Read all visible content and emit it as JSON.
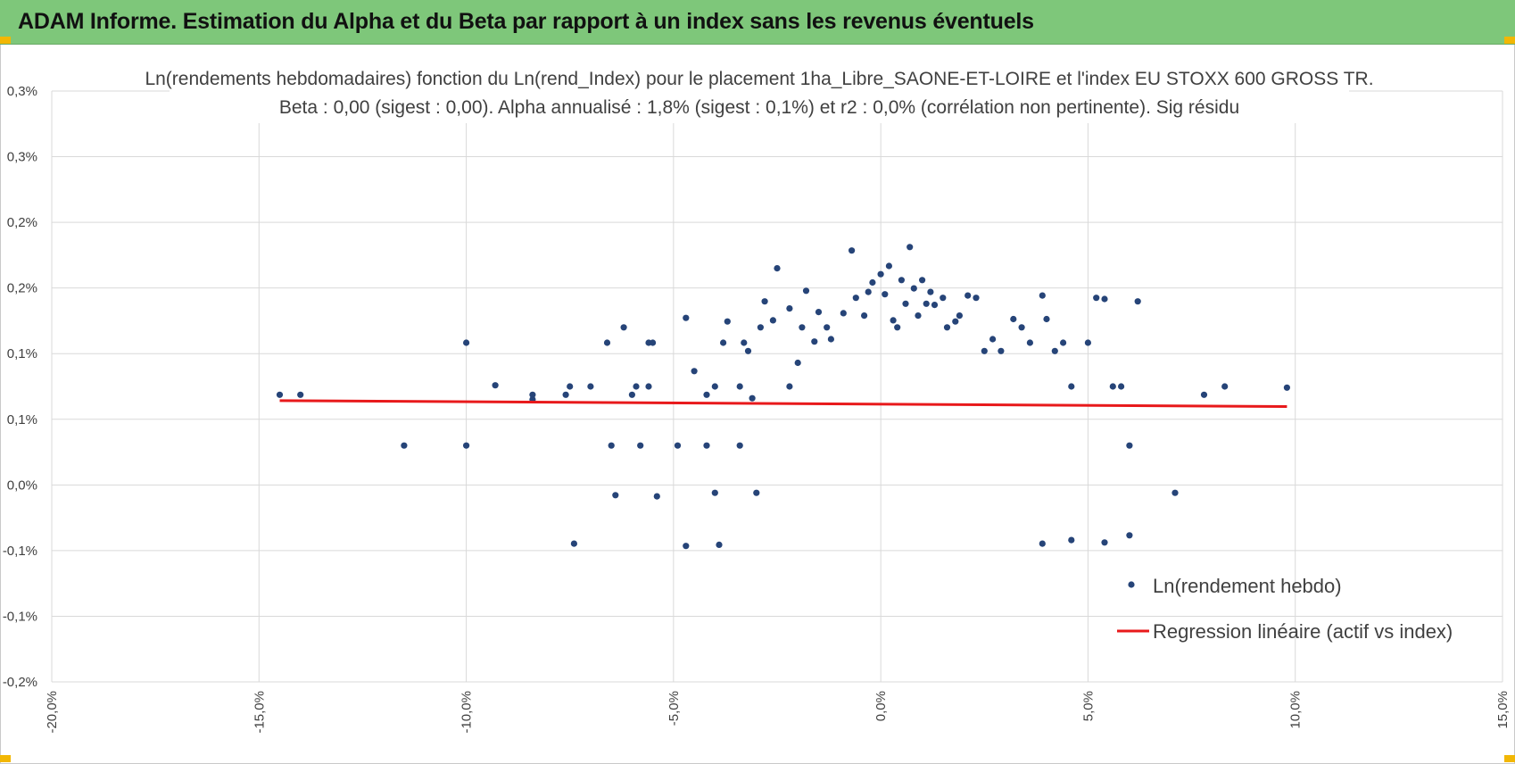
{
  "banner": {
    "title": "ADAM Informe. Estimation du Alpha et du Beta par rapport à un index sans les revenus éventuels",
    "color": "#7ec77a",
    "accent": "#f2b705"
  },
  "chart_data": {
    "type": "scatter",
    "title": "Ln(rendements hebdomadaires) fonction du Ln(rend_Index) pour le placement 1ha_Libre_SAONE-ET-LOIRE et l'index EU STOXX 600 GROSS TR.",
    "subtitle": "Beta : 0,00 (sigest : 0,00). Alpha annualisé : 1,8% (sigest : 0,1%) et r2 : 0,0% (corrélation non pertinente). Sig résidu",
    "xlabel": "",
    "ylabel": "",
    "xlim": [
      -20,
      15
    ],
    "ylim": [
      -0.2,
      0.3
    ],
    "grid": true,
    "legend_position": "bottom-right",
    "x_ticks": [
      "-20,0%",
      "-15,0%",
      "-10,0%",
      "-5,0%",
      "0,0%",
      "5,0%",
      "10,0%",
      "15,0%"
    ],
    "y_ticks": [
      "0,3%",
      "0,3%",
      "0,2%",
      "0,2%",
      "0,1%",
      "0,1%",
      "0,0%",
      "-0,1%",
      "-0,1%",
      "-0,2%"
    ],
    "series": [
      {
        "name": "Ln(rendement hebdo)",
        "color": "#264478",
        "points": [
          [
            -14.5,
            0.043
          ],
          [
            -14.0,
            0.043
          ],
          [
            -11.5,
            0.0
          ],
          [
            -10.0,
            0.0
          ],
          [
            -10.0,
            0.087
          ],
          [
            -9.3,
            0.051
          ],
          [
            -8.4,
            0.043
          ],
          [
            -8.4,
            0.039
          ],
          [
            -7.6,
            0.043
          ],
          [
            -7.5,
            0.05
          ],
          [
            -7.4,
            -0.083
          ],
          [
            -7.0,
            0.05
          ],
          [
            -6.6,
            0.087
          ],
          [
            -6.5,
            0.0
          ],
          [
            -6.4,
            -0.042
          ],
          [
            -6.2,
            0.1
          ],
          [
            -6.0,
            0.043
          ],
          [
            -5.9,
            0.05
          ],
          [
            -5.8,
            0.0
          ],
          [
            -5.6,
            0.087
          ],
          [
            -5.5,
            0.087
          ],
          [
            -5.4,
            -0.043
          ],
          [
            -5.6,
            0.05
          ],
          [
            -4.9,
            0.0
          ],
          [
            -4.7,
            0.108
          ],
          [
            -4.7,
            -0.085
          ],
          [
            -4.5,
            0.063
          ],
          [
            -4.2,
            0.043
          ],
          [
            -4.2,
            0.0
          ],
          [
            -4.0,
            -0.04
          ],
          [
            -4.0,
            0.05
          ],
          [
            -3.9,
            -0.084
          ],
          [
            -3.8,
            0.087
          ],
          [
            -3.7,
            0.105
          ],
          [
            -3.4,
            0.05
          ],
          [
            -3.4,
            0.0
          ],
          [
            -3.3,
            0.087
          ],
          [
            -3.2,
            0.08
          ],
          [
            -3.1,
            0.04
          ],
          [
            -3.0,
            -0.04
          ],
          [
            -2.9,
            0.1
          ],
          [
            -2.8,
            0.122
          ],
          [
            -2.6,
            0.106
          ],
          [
            -2.5,
            0.15
          ],
          [
            -2.2,
            0.116
          ],
          [
            -2.2,
            0.05
          ],
          [
            -2.0,
            0.07
          ],
          [
            -1.9,
            0.1
          ],
          [
            -1.8,
            0.131
          ],
          [
            -1.6,
            0.088
          ],
          [
            -1.5,
            0.113
          ],
          [
            -1.3,
            0.1
          ],
          [
            -1.2,
            0.09
          ],
          [
            -0.9,
            0.112
          ],
          [
            -0.7,
            0.165
          ],
          [
            -0.6,
            0.125
          ],
          [
            -0.4,
            0.11
          ],
          [
            -0.3,
            0.13
          ],
          [
            -0.2,
            0.138
          ],
          [
            0.0,
            0.145
          ],
          [
            0.1,
            0.128
          ],
          [
            0.2,
            0.152
          ],
          [
            0.3,
            0.106
          ],
          [
            0.4,
            0.1
          ],
          [
            0.5,
            0.14
          ],
          [
            0.6,
            0.12
          ],
          [
            0.7,
            0.168
          ],
          [
            0.8,
            0.133
          ],
          [
            0.9,
            0.11
          ],
          [
            1.0,
            0.14
          ],
          [
            1.1,
            0.12
          ],
          [
            1.2,
            0.13
          ],
          [
            1.3,
            0.119
          ],
          [
            1.5,
            0.125
          ],
          [
            1.6,
            0.1
          ],
          [
            1.8,
            0.105
          ],
          [
            1.9,
            0.11
          ],
          [
            2.1,
            0.127
          ],
          [
            2.3,
            0.125
          ],
          [
            2.5,
            0.08
          ],
          [
            2.7,
            0.09
          ],
          [
            2.9,
            0.08
          ],
          [
            3.2,
            0.107
          ],
          [
            3.4,
            0.1
          ],
          [
            3.6,
            0.087
          ],
          [
            3.9,
            0.127
          ],
          [
            4.0,
            0.107
          ],
          [
            4.2,
            0.08
          ],
          [
            4.4,
            0.087
          ],
          [
            4.6,
            0.05
          ],
          [
            5.0,
            0.087
          ],
          [
            5.2,
            0.125
          ],
          [
            5.4,
            0.124
          ],
          [
            5.6,
            0.05
          ],
          [
            5.8,
            0.05
          ],
          [
            6.0,
            0.0
          ],
          [
            6.2,
            0.122
          ],
          [
            7.1,
            -0.04
          ],
          [
            7.8,
            0.043
          ],
          [
            8.3,
            0.05
          ],
          [
            9.8,
            0.049
          ],
          [
            3.9,
            -0.083
          ],
          [
            4.6,
            -0.08
          ],
          [
            5.4,
            -0.082
          ],
          [
            6.0,
            -0.076
          ]
        ]
      },
      {
        "name": "Regression linéaire (actif vs index)",
        "color": "#e8191b",
        "type": "line",
        "points": [
          [
            -14.5,
            0.038
          ],
          [
            9.8,
            0.033
          ]
        ]
      }
    ]
  }
}
